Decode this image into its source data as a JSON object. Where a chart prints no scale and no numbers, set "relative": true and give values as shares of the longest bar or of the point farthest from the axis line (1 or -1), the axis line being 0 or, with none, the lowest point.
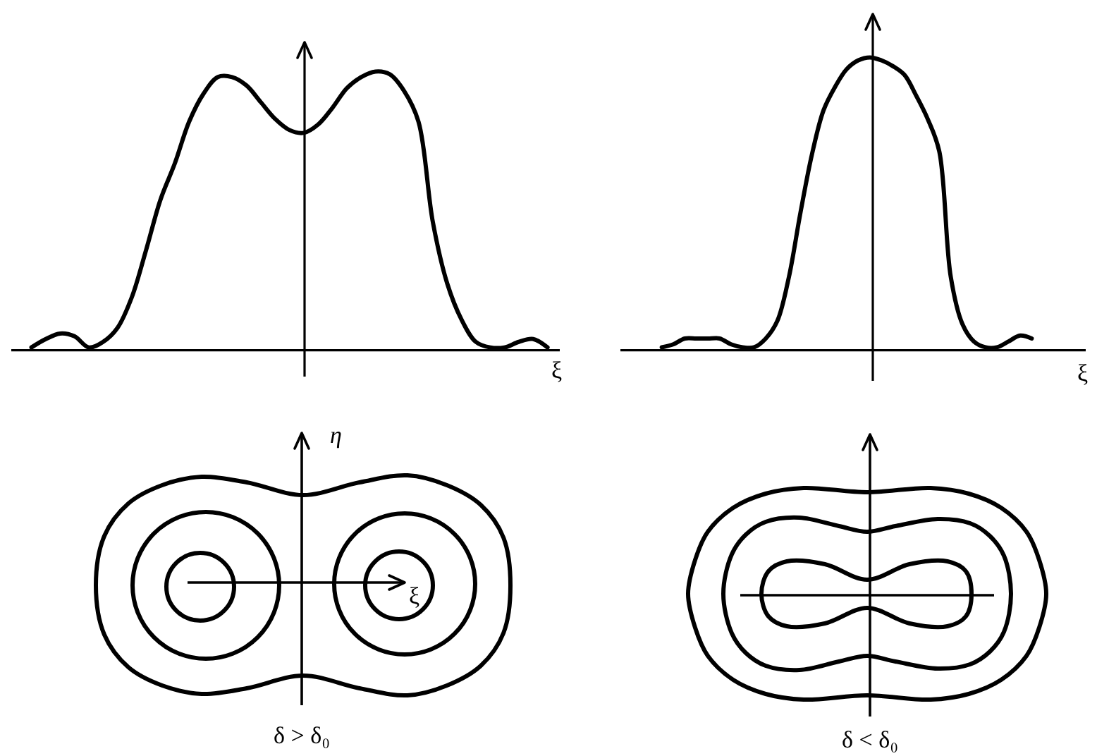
{
  "chart_data": [
    {
      "type": "line",
      "relative": true,
      "xlabel": "ξ",
      "categories": [
        null,
        null,
        null,
        null,
        null,
        null,
        null,
        null,
        null,
        null,
        null,
        null,
        null,
        null,
        null,
        null,
        null,
        null,
        null,
        null,
        null,
        null,
        null,
        null,
        null,
        null,
        null,
        null,
        null,
        null,
        null,
        null,
        null,
        null,
        null,
        null,
        null
      ],
      "series": [
        {
          "color": "#000000",
          "values": [
            0.01,
            0.04,
            0.06,
            0.05,
            0.01,
            0.03,
            0.08,
            0.19,
            0.36,
            0.54,
            0.67,
            0.82,
            0.92,
            0.98,
            0.98,
            0.95,
            0.89,
            0.83,
            0.79,
            0.78,
            0.81,
            0.87,
            0.94,
            0.98,
            1.0,
            0.99,
            0.93,
            0.82,
            0.46,
            0.24,
            0.11,
            0.03,
            0.01,
            0.01,
            0.03,
            0.04,
            0.01
          ]
        }
      ]
    },
    {
      "type": "line",
      "relative": true,
      "xlabel": "ξ",
      "categories": [
        null,
        null,
        null,
        null,
        null,
        null,
        null,
        null,
        null,
        null,
        null,
        null,
        null,
        null,
        null,
        null,
        null,
        null,
        null,
        null,
        null,
        null,
        null,
        null,
        null,
        null,
        null,
        null,
        null,
        null,
        null,
        null,
        null
      ],
      "series": [
        {
          "color": "#000000",
          "values": [
            0.01,
            0.02,
            0.04,
            0.04,
            0.04,
            0.04,
            0.02,
            0.01,
            0.01,
            0.04,
            0.1,
            0.25,
            0.47,
            0.67,
            0.82,
            0.9,
            0.96,
            0.99,
            1.0,
            0.99,
            0.97,
            0.94,
            0.87,
            0.79,
            0.68,
            0.25,
            0.09,
            0.03,
            0.01,
            0.01,
            0.03,
            0.05,
            0.04
          ]
        }
      ]
    },
    {
      "type": "other",
      "xlabel": "ξ",
      "ylabel": "η",
      "annotations": [
        "δ > δ₀"
      ]
    },
    {
      "type": "other",
      "annotations": [
        "δ < δ₀"
      ]
    }
  ]
}
